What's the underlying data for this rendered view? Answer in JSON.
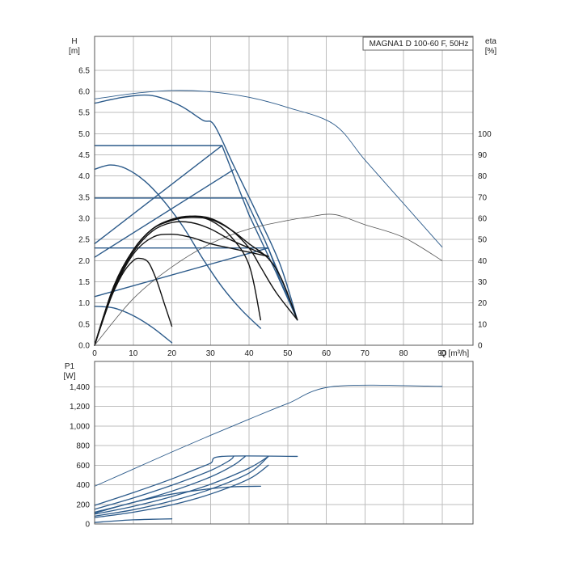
{
  "chart_data": [
    {
      "type": "line",
      "panel": "head-efficiency",
      "title": "MAGNA1 D 100-60 F, 50Hz",
      "ylabel": "H",
      "yunit": "[m]",
      "y2label": "eta",
      "y2unit": "[%]",
      "xlabel": "Q [m³/h]",
      "xlim": [
        0,
        98
      ],
      "ylim": [
        0,
        7.3
      ],
      "y2lim": [
        0,
        146
      ],
      "xticks": [
        0,
        10,
        20,
        30,
        40,
        50,
        60,
        70,
        80,
        90
      ],
      "yticks": [
        "0.0",
        "0.5",
        "1.0",
        "1.5",
        "2.0",
        "2.5",
        "3.0",
        "3.5",
        "4.0",
        "4.5",
        "5.0",
        "5.5",
        "6.0",
        "6.5"
      ],
      "y2ticks": [
        0,
        10,
        20,
        30,
        40,
        50,
        60,
        70,
        80,
        90,
        100
      ],
      "grid": true,
      "series": [
        {
          "role": "head-max-twin",
          "color": "#2b5a8a",
          "axis": "H",
          "points": [
            [
              0,
              5.82
            ],
            [
              10,
              5.95
            ],
            [
              20,
              6.02
            ],
            [
              30,
              5.99
            ],
            [
              40,
              5.86
            ],
            [
              50,
              5.62
            ],
            [
              62,
              5.22
            ],
            [
              70,
              4.38
            ],
            [
              80,
              3.35
            ],
            [
              90,
              2.32
            ]
          ]
        },
        {
          "role": "head-max-single",
          "color": "#2b5a8a",
          "axis": "H",
          "points": [
            [
              0,
              5.72
            ],
            [
              8,
              5.87
            ],
            [
              15,
              5.9
            ],
            [
              22,
              5.67
            ],
            [
              28,
              5.32
            ],
            [
              31,
              5.2
            ],
            [
              36,
              4.25
            ],
            [
              42,
              3.12
            ],
            [
              48,
              1.92
            ],
            [
              52.5,
              0.6
            ]
          ]
        },
        {
          "role": "head-mid",
          "color": "#2b5a8a",
          "axis": "H",
          "points": [
            [
              0,
              4.16
            ],
            [
              4,
              4.26
            ],
            [
              8,
              4.18
            ],
            [
              13,
              3.88
            ],
            [
              18,
              3.4
            ],
            [
              23,
              2.79
            ],
            [
              28,
              2.05
            ],
            [
              33,
              1.38
            ],
            [
              38,
              0.84
            ],
            [
              43,
              0.4
            ]
          ]
        },
        {
          "role": "head-min",
          "color": "#2b5a8a",
          "axis": "H",
          "points": [
            [
              0,
              0.92
            ],
            [
              5,
              0.88
            ],
            [
              10,
              0.7
            ],
            [
              15,
              0.42
            ],
            [
              20,
              0.06
            ]
          ]
        },
        {
          "role": "const-pressure-upper",
          "color": "#2b5a8a",
          "axis": "H",
          "points": [
            [
              0,
              4.72
            ],
            [
              33,
              4.72
            ],
            [
              40,
              3.08
            ],
            [
              47,
              1.72
            ],
            [
              52.5,
              0.6
            ]
          ]
        },
        {
          "role": "const-pressure-lower",
          "color": "#2b5a8a",
          "axis": "H",
          "points": [
            [
              0,
              3.48
            ],
            [
              39,
              3.48
            ],
            [
              44,
              2.5
            ],
            [
              49,
              1.42
            ],
            [
              52.5,
              0.6
            ]
          ]
        },
        {
          "role": "const-pressure-bottom",
          "color": "#2b5a8a",
          "axis": "H",
          "points": [
            [
              0,
              2.3
            ],
            [
              45,
              2.3
            ],
            [
              48,
              1.55
            ],
            [
              52.5,
              0.6
            ]
          ]
        },
        {
          "role": "prop-pressure-1",
          "color": "#2b5a8a",
          "axis": "H",
          "points": [
            [
              0,
              2.4
            ],
            [
              33,
              4.72
            ]
          ]
        },
        {
          "role": "prop-pressure-2",
          "color": "#2b5a8a",
          "axis": "H",
          "points": [
            [
              0,
              2.08
            ],
            [
              36,
              4.15
            ]
          ]
        },
        {
          "role": "prop-pressure-3",
          "color": "#2b5a8a",
          "axis": "H",
          "points": [
            [
              0,
              1.15
            ],
            [
              45,
              2.3
            ]
          ]
        },
        {
          "role": "eta-twin",
          "color": "#555555",
          "axis": "eta",
          "points": [
            [
              0,
              0
            ],
            [
              10,
              22
            ],
            [
              20,
              37
            ],
            [
              30,
              48
            ],
            [
              40,
              55
            ],
            [
              50,
              59
            ],
            [
              55,
              60.5
            ],
            [
              62,
              61.8
            ],
            [
              70,
              57
            ],
            [
              80,
              51
            ],
            [
              90,
              40
            ]
          ]
        },
        {
          "role": "eta-1",
          "color": "#111111",
          "axis": "eta",
          "points": [
            [
              0,
              0
            ],
            [
              5,
              28
            ],
            [
              10,
              45
            ],
            [
              15,
              55
            ],
            [
              20,
              59
            ],
            [
              25,
              60.5
            ],
            [
              30,
              59.5
            ],
            [
              35,
              55
            ],
            [
              40,
              48
            ],
            [
              45,
              41
            ],
            [
              48.5,
              31
            ],
            [
              52.5,
              12
            ]
          ]
        },
        {
          "role": "eta-2",
          "color": "#111111",
          "axis": "eta",
          "points": [
            [
              0,
              0
            ],
            [
              5,
              28
            ],
            [
              10,
              45
            ],
            [
              15,
              55
            ],
            [
              20,
              59
            ],
            [
              25,
              61
            ],
            [
              30,
              60
            ],
            [
              35,
              55
            ],
            [
              40,
              46
            ],
            [
              43,
              37
            ],
            [
              47,
              25
            ],
            [
              52.5,
              12
            ]
          ]
        },
        {
          "role": "eta-3",
          "color": "#111111",
          "axis": "eta",
          "points": [
            [
              0,
              0
            ],
            [
              5,
              28
            ],
            [
              10,
              45
            ],
            [
              15,
              55
            ],
            [
              20,
              59.5
            ],
            [
              25,
              61
            ],
            [
              30,
              59
            ],
            [
              35,
              52
            ],
            [
              40,
              38
            ],
            [
              43,
              12
            ]
          ]
        },
        {
          "role": "eta-4",
          "color": "#111111",
          "axis": "eta",
          "points": [
            [
              0,
              0
            ],
            [
              5,
              27
            ],
            [
              10,
              44
            ],
            [
              15,
              54
            ],
            [
              20,
              58
            ],
            [
              25,
              58
            ],
            [
              30,
              55
            ],
            [
              35,
              50
            ],
            [
              40,
              46
            ],
            [
              45,
              42
            ]
          ]
        },
        {
          "role": "eta-5",
          "color": "#111111",
          "axis": "eta",
          "points": [
            [
              0,
              0
            ],
            [
              5,
              26
            ],
            [
              10,
              43
            ],
            [
              15,
              51
            ],
            [
              20,
              52.5
            ],
            [
              25,
              51
            ],
            [
              30,
              48
            ],
            [
              35,
              46
            ],
            [
              40,
              44
            ],
            [
              45,
              42
            ]
          ]
        },
        {
          "role": "eta-6",
          "color": "#111111",
          "axis": "eta",
          "points": [
            [
              0,
              0
            ],
            [
              3,
              17
            ],
            [
              7,
              33
            ],
            [
              10,
              40
            ],
            [
              12,
              41
            ],
            [
              14,
              39
            ],
            [
              16,
              31
            ],
            [
              18,
              20
            ],
            [
              20,
              9
            ]
          ]
        }
      ]
    },
    {
      "type": "line",
      "panel": "power",
      "ylabel": "P1",
      "yunit": "[W]",
      "xlim": [
        0,
        98
      ],
      "ylim": [
        0,
        1660
      ],
      "yticks": [
        "0",
        "200",
        "400",
        "600",
        "800",
        "1,000",
        "1,200",
        "1,400"
      ],
      "grid": true,
      "series": [
        {
          "role": "p1-max-twin",
          "color": "#2b5a8a",
          "points": [
            [
              0,
              385
            ],
            [
              10,
              560
            ],
            [
              20,
              735
            ],
            [
              30,
              905
            ],
            [
              40,
              1070
            ],
            [
              50,
              1230
            ],
            [
              62,
              1405
            ],
            [
              90,
              1405
            ]
          ]
        },
        {
          "role": "p1-max-single",
          "color": "#2b5a8a",
          "points": [
            [
              0,
              190
            ],
            [
              10,
              320
            ],
            [
              20,
              460
            ],
            [
              25,
              540
            ],
            [
              30,
              620
            ],
            [
              33,
              690
            ],
            [
              52.5,
              690
            ]
          ]
        },
        {
          "role": "p1-ctrl-1",
          "color": "#2b5a8a",
          "points": [
            [
              0,
              150
            ],
            [
              10,
              265
            ],
            [
              20,
              395
            ],
            [
              30,
              545
            ],
            [
              35,
              650
            ],
            [
              36,
              690
            ]
          ]
        },
        {
          "role": "p1-ctrl-2",
          "color": "#2b5a8a",
          "points": [
            [
              0,
              120
            ],
            [
              10,
              220
            ],
            [
              20,
              335
            ],
            [
              30,
              480
            ],
            [
              36,
              600
            ],
            [
              39,
              690
            ]
          ]
        },
        {
          "role": "p1-ctrl-3",
          "color": "#2b5a8a",
          "points": [
            [
              0,
              100
            ],
            [
              10,
              180
            ],
            [
              20,
              280
            ],
            [
              30,
              405
            ],
            [
              40,
              570
            ],
            [
              45,
              690
            ]
          ]
        },
        {
          "role": "p1-ctrl-4",
          "color": "#2b5a8a",
          "points": [
            [
              0,
              80
            ],
            [
              10,
              145
            ],
            [
              20,
              235
            ],
            [
              30,
              355
            ],
            [
              40,
              520
            ],
            [
              45,
              690
            ]
          ]
        },
        {
          "role": "p1-ctrl-5",
          "color": "#2b5a8a",
          "points": [
            [
              0,
              65
            ],
            [
              10,
              120
            ],
            [
              20,
              195
            ],
            [
              30,
              305
            ],
            [
              40,
              460
            ],
            [
              45,
              600
            ]
          ]
        },
        {
          "role": "p1-mid",
          "color": "#2b5a8a",
          "points": [
            [
              0,
              110
            ],
            [
              10,
              220
            ],
            [
              20,
              305
            ],
            [
              30,
              360
            ],
            [
              36,
              380
            ],
            [
              43,
              385
            ]
          ]
        },
        {
          "role": "p1-min",
          "color": "#2b5a8a",
          "points": [
            [
              0,
              15
            ],
            [
              5,
              30
            ],
            [
              10,
              42
            ],
            [
              15,
              48
            ],
            [
              20,
              52
            ]
          ]
        }
      ]
    }
  ]
}
